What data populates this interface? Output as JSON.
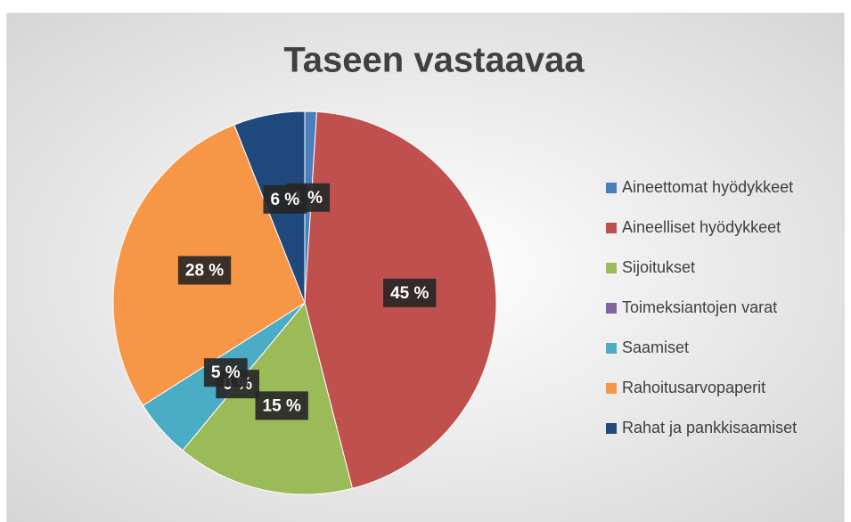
{
  "chart_data": {
    "type": "pie",
    "title": "Taseen vastaavaa",
    "categories": [
      "Aineettomat hyödykkeet",
      "Aineelliset hyödykkeet",
      "Sijoitukset",
      "Toimeksiantojen varat",
      "Saamiset",
      "Rahoitusarvopaperit",
      "Rahat ja pankkisaamiset"
    ],
    "values": [
      1,
      45,
      15,
      0,
      5,
      28,
      6
    ],
    "value_labels": [
      "1 %",
      "45 %",
      "15 %",
      "0 %",
      "5 %",
      "28 %",
      "6 %"
    ],
    "colors": [
      "#4a7ebb",
      "#c0504d",
      "#9bbb59",
      "#8064a2",
      "#4bacc6",
      "#f79646",
      "#1f497d"
    ],
    "legend": "right"
  }
}
